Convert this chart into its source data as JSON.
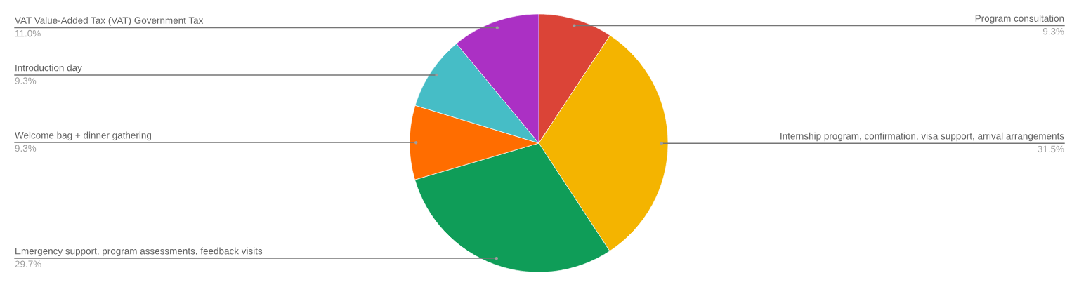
{
  "chart_data": {
    "type": "pie",
    "categories": [
      "Program consultation",
      "Internship program, confirmation, visa support, arrival arrangements",
      "Emergency support, program assessments, feedback visits",
      "Welcome bag + dinner gathering",
      "Introduction day",
      "VAT Value-Added Tax (VAT) Government Tax"
    ],
    "values": [
      9.3,
      31.5,
      29.7,
      9.3,
      9.3,
      11.0
    ],
    "value_labels": [
      "9.3%",
      "31.5%",
      "29.7%",
      "9.3%",
      "9.3%",
      "11.0%"
    ],
    "colors": [
      "#db4437",
      "#f4b400",
      "#0f9d58",
      "#ff6d00",
      "#46bdc6",
      "#ab30c4"
    ]
  }
}
